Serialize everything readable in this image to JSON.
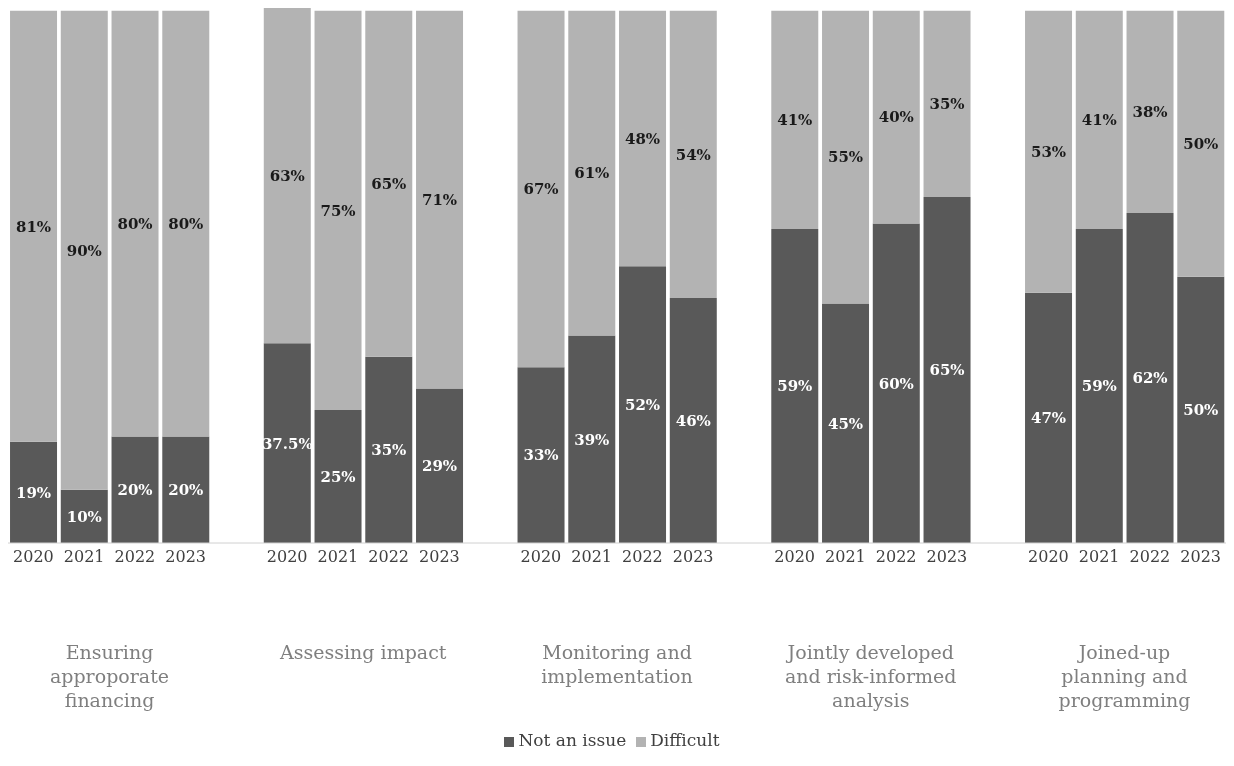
{
  "chart_data": {
    "type": "bar",
    "stacked": true,
    "categories": [
      "2020",
      "2021",
      "2022",
      "2023",
      null,
      "2020",
      "2021",
      "2022",
      "2023",
      null,
      "2020",
      "2021",
      "2022",
      "2023",
      null,
      "2020",
      "2021",
      "2022",
      "2023",
      null,
      "2020",
      "2021",
      "2022",
      "2023"
    ],
    "series": [
      {
        "name": "Not an issue",
        "color": "#595959",
        "values": [
          19,
          10,
          20,
          20,
          null,
          37.5,
          25,
          35,
          29,
          null,
          33,
          39,
          52,
          46,
          null,
          59,
          45,
          60,
          65,
          null,
          47,
          59,
          62,
          50
        ],
        "value_labels": [
          "19%",
          "10%",
          "20%",
          "20%",
          null,
          "37.5%",
          "25%",
          "35%",
          "29%",
          null,
          "33%",
          "39%",
          "52%",
          "46%",
          null,
          "59%",
          "45%",
          "60%",
          "65%",
          null,
          "47%",
          "59%",
          "62%",
          "50%"
        ]
      },
      {
        "name": "Difficult",
        "color": "#b3b3b3",
        "values": [
          81,
          90,
          80,
          80,
          null,
          63,
          75,
          65,
          71,
          null,
          67,
          61,
          48,
          54,
          null,
          41,
          55,
          40,
          35,
          null,
          53,
          41,
          38,
          50
        ],
        "value_labels": [
          "81%",
          "90%",
          "80%",
          "80%",
          null,
          "63%",
          "75%",
          "65%",
          "71%",
          null,
          "67%",
          "61%",
          "48%",
          "54%",
          null,
          "41%",
          "55%",
          "40%",
          "35%",
          null,
          "53%",
          "41%",
          "38%",
          "50%"
        ]
      }
    ],
    "annotations": [
      "Ensuring approporate financing",
      "Assessing impact",
      "Monitoring and implementation",
      "Jointly developed and risk-informed analysis",
      "Joined-up planning and programming"
    ],
    "legend": "bottom",
    "grid": false
  }
}
